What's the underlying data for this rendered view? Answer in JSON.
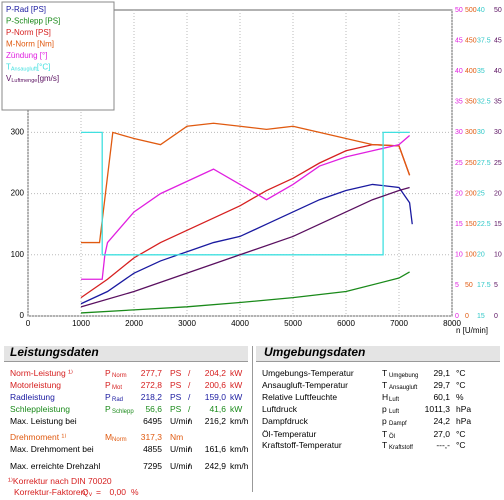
{
  "chart_data": {
    "type": "line",
    "x_label": "n [U/min]",
    "xlim": [
      0,
      8000
    ],
    "xticks": [
      0,
      1000,
      2000,
      3000,
      4000,
      5000,
      6000,
      7000,
      8000
    ],
    "ylim": [
      0,
      500
    ],
    "yticks": [
      0,
      100,
      200,
      300
    ],
    "grid": true,
    "right_axes": [
      {
        "color": "#e020e0",
        "lim": [
          0,
          50
        ],
        "ticks": [
          0,
          5,
          10,
          15,
          20,
          25,
          30,
          35,
          40,
          45,
          50
        ]
      },
      {
        "color": "#e05a10",
        "lim": [
          0,
          500
        ],
        "ticks": [
          0,
          50,
          100,
          150,
          200,
          250,
          300,
          350,
          400,
          450,
          500
        ]
      },
      {
        "color": "#30c8c8",
        "lim": [
          15,
          40
        ],
        "ticks": [
          15,
          17.5,
          20,
          22.5,
          25,
          27.5,
          30,
          32.5,
          35,
          37.5,
          40
        ]
      },
      {
        "color": "#5a1060",
        "lim": [
          0,
          50
        ],
        "ticks": [
          0,
          5,
          10,
          15,
          20,
          25,
          30,
          35,
          40,
          45,
          50
        ]
      }
    ],
    "series": [
      {
        "name": "P-Rad [PS]",
        "color": "#1a1aa0",
        "x": [
          1000,
          1500,
          2000,
          2500,
          3000,
          3500,
          4000,
          4500,
          5000,
          5500,
          6000,
          6500,
          7000,
          7200,
          7250
        ],
        "values": [
          20,
          40,
          70,
          90,
          105,
          120,
          130,
          150,
          170,
          190,
          205,
          215,
          210,
          185,
          150
        ]
      },
      {
        "name": "P-Schlepp [PS]",
        "color": "#1a8a1a",
        "x": [
          1000,
          2000,
          3000,
          4000,
          5000,
          6000,
          7000,
          7200
        ],
        "values": [
          5,
          10,
          15,
          22,
          30,
          40,
          62,
          72
        ]
      },
      {
        "name": "P-Norm [PS]",
        "color": "#d62020",
        "x": [
          1000,
          1500,
          2000,
          2500,
          3000,
          3500,
          4000,
          4500,
          5000,
          5500,
          6000,
          6500,
          7000,
          7200
        ],
        "values": [
          30,
          60,
          95,
          120,
          140,
          160,
          180,
          205,
          225,
          250,
          270,
          280,
          278,
          230
        ]
      },
      {
        "name": "M-Norm [Nm]",
        "color": "#e05a10",
        "axis": 1,
        "x": [
          1000,
          1350,
          1600,
          2000,
          2500,
          3000,
          3500,
          4000,
          4500,
          5000,
          5500,
          6000,
          6500,
          7000,
          7200
        ],
        "values": [
          120,
          120,
          300,
          290,
          280,
          310,
          315,
          310,
          305,
          310,
          300,
          290,
          280,
          278,
          230
        ]
      },
      {
        "name": "Zündung [°]",
        "color": "#e020e0",
        "axis": 0,
        "x": [
          1000,
          1400,
          1450,
          1500,
          2000,
          2500,
          3000,
          3500,
          4000,
          4500,
          5000,
          5500,
          6000,
          6500,
          7000,
          7200
        ],
        "values": [
          6,
          6,
          10,
          12,
          17,
          20,
          22,
          24,
          21.5,
          19,
          21.5,
          24.5,
          26,
          27,
          28,
          29.5
        ]
      },
      {
        "name": "T",
        "sub": "Ansaugluft",
        "unit": "[°C]",
        "color": "#40e0e0",
        "axis": 2,
        "x": [
          1000,
          1400,
          1400,
          6700,
          6700,
          7200
        ],
        "values": [
          30,
          30,
          20,
          20,
          30,
          30
        ]
      },
      {
        "name": "V",
        "sub": "Luftmenge",
        "unit": "[gm/s]",
        "color": "#5a1060",
        "axis": 3,
        "x": [
          1000,
          2000,
          3000,
          4000,
          5000,
          6000,
          6500,
          7000,
          7200
        ],
        "values": [
          1.5,
          4,
          7,
          10,
          13,
          17,
          19,
          20.5,
          21
        ]
      }
    ]
  },
  "leistung": {
    "title": "Leistungsdaten",
    "rows": [
      {
        "label": "Norm-Leistung ¹⁾",
        "color": "#d62020",
        "sym": "P",
        "sub": "Norm",
        "value": "277,7",
        "unit": "PS",
        "sep": "/",
        "value2": "204,2",
        "unit2": "kW"
      },
      {
        "label": "Motorleistung",
        "color": "#d62020",
        "sym": "P",
        "sub": "Mot",
        "value": "272,8",
        "unit": "PS",
        "sep": "/",
        "value2": "200,6",
        "unit2": "kW"
      },
      {
        "label": "Radleistung",
        "color": "#1a1aa0",
        "sym": "P",
        "sub": "Rad",
        "value": "218,2",
        "unit": "PS",
        "sep": "/",
        "value2": "159,0",
        "unit2": "kW"
      },
      {
        "label": "Schleppleistung",
        "color": "#1a8a1a",
        "sym": "P",
        "sub": "Schlepp",
        "value": "56,6",
        "unit": "PS",
        "sep": "/",
        "value2": "41,6",
        "unit2": "kW"
      },
      {
        "label": "Max. Leistung bei",
        "color": "#000000",
        "value": "6495",
        "unit": "U/min",
        "sep": "/",
        "value2": "216,2",
        "unit2": "km/h"
      },
      {
        "label": "Drehmoment ¹⁾",
        "color": "#e05a10",
        "sym": "M",
        "sub": "Norm",
        "value": "317,3",
        "unit": "Nm"
      },
      {
        "label": "Max. Drehmoment bei",
        "color": "#000000",
        "value": "4855",
        "unit": "U/min",
        "sep": "/",
        "value2": "161,6",
        "unit2": "km/h"
      },
      {
        "label": "Max. erreichte Drehzahl",
        "color": "#000000",
        "value": "7295",
        "unit": "U/min",
        "sep": "/",
        "value2": "242,9",
        "unit2": "km/h"
      }
    ],
    "footnote": "¹⁾Korrektur nach DIN 70020",
    "korrektur": {
      "label": "Korrektur-Faktoren:",
      "sym": "Q",
      "sub": "v",
      "eq": "=",
      "value": "0,00",
      "unit": "%"
    }
  },
  "umgebung": {
    "title": "Umgebungsdaten",
    "rows": [
      {
        "label": "Umgebungs-Temperatur",
        "sym": "T",
        "sub": "Umgebung",
        "value": "29,1",
        "unit": "°C"
      },
      {
        "label": "Ansaugluft-Temperatur",
        "sym": "T",
        "sub": "Ansaugluft",
        "value": "29,7",
        "unit": "°C"
      },
      {
        "label": "Relative Luftfeuchte",
        "sym": "H",
        "sub": "Luft",
        "value": "60,1",
        "unit": "%"
      },
      {
        "label": "Luftdruck",
        "sym": "p",
        "sub": "Luft",
        "value": "1011,3",
        "unit": "hPa"
      },
      {
        "label": "Dampfdruck",
        "sym": "p",
        "sub": "Dampf",
        "value": "24,2",
        "unit": "hPa"
      },
      {
        "label": "Öl-Temperatur",
        "sym": "T",
        "sub": "Öl",
        "value": "27,0",
        "unit": "°C"
      },
      {
        "label": "Kraftstoff-Temperatur",
        "sym": "T",
        "sub": "Kraftstoff",
        "value": "---,-",
        "unit": "°C"
      }
    ]
  }
}
